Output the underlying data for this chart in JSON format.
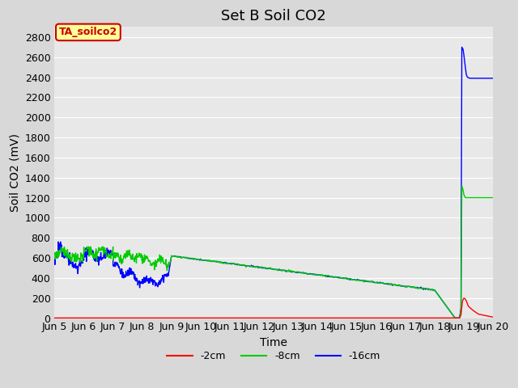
{
  "title": "Set B Soil CO2",
  "xlabel": "Time",
  "ylabel": "Soil CO2 (mV)",
  "ylim": [
    0,
    2900
  ],
  "yticks": [
    0,
    200,
    400,
    600,
    800,
    1000,
    1200,
    1400,
    1600,
    1800,
    2000,
    2200,
    2400,
    2600,
    2800
  ],
  "x_start": 5,
  "x_end": 20,
  "xtick_labels": [
    "Jun 5",
    "Jun 6",
    "Jun 7",
    "Jun 8",
    "Jun 9",
    "Jun 10",
    "Jun 11",
    "Jun 12",
    "Jun 13",
    "Jun 14",
    "Jun 15",
    "Jun 16",
    "Jun 17",
    "Jun 18",
    "Jun 19",
    "Jun 20"
  ],
  "xtick_positions": [
    5,
    6,
    7,
    8,
    9,
    10,
    11,
    12,
    13,
    14,
    15,
    16,
    17,
    18,
    19,
    20
  ],
  "color_2cm": "#ff0000",
  "color_8cm": "#00cc00",
  "color_16cm": "#0000ff",
  "legend_label_box": "TA_soilco2",
  "legend_box_facecolor": "#ffff99",
  "legend_box_edgecolor": "#cc0000",
  "background_color": "#e8e8e8",
  "grid_color": "#ffffff",
  "title_fontsize": 13,
  "axis_fontsize": 10,
  "tick_fontsize": 9
}
